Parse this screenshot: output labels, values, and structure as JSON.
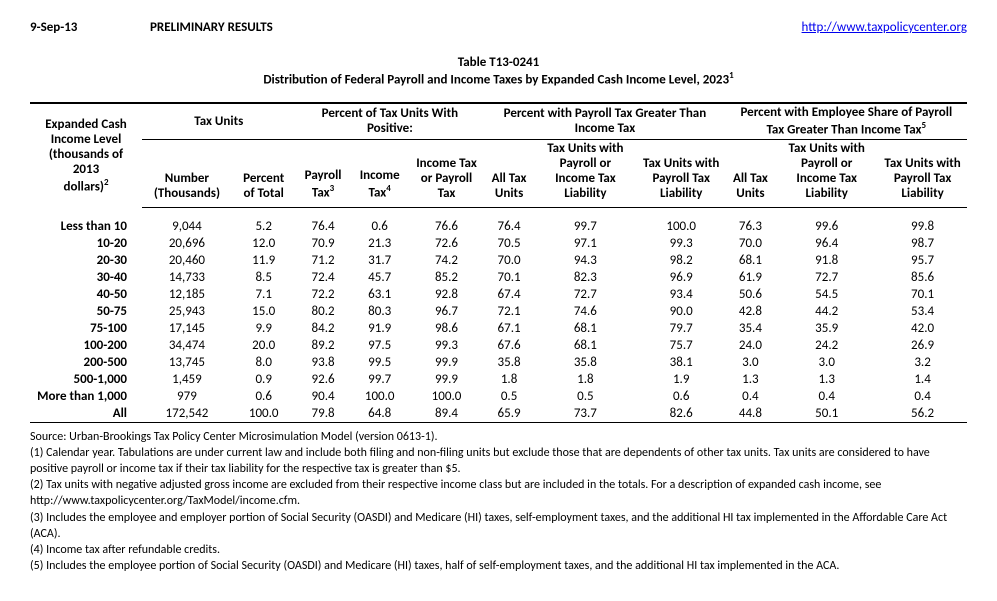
{
  "header": {
    "date": "9-Sep-13",
    "status": "PRELIMINARY RESULTS",
    "link_text": "http://www.taxpolicycenter.org",
    "link_href": "http://www.taxpolicycenter.org"
  },
  "title": {
    "line1": "Table T13-0241",
    "line2_pre": "Distribution of Federal Payroll and Income Taxes by Expanded Cash Income Level, 2023",
    "line2_sup": "1"
  },
  "column_groups": {
    "rowgroup_l1": "Expanded Cash",
    "rowgroup_l2": "Income Level",
    "rowgroup_l3": "(thousands of 2013",
    "rowgroup_l4_pre": "dollars)",
    "rowgroup_l4_sup": "2",
    "g1": "Tax Units",
    "g2": "Percent of Tax Units With Positive:",
    "g3": "Percent with Payroll Tax Greater Than Income Tax",
    "g4_pre": "Percent with Employee Share of Payroll Tax Greater Than Income Tax",
    "g4_sup": "5"
  },
  "subcols": {
    "c1": "Number (Thousands)",
    "c2": "Percent of Total",
    "c3_pre": "Payroll Tax",
    "c3_sup": "3",
    "c4_pre": "Income Tax",
    "c4_sup": "4",
    "c5": "Income Tax or Payroll Tax",
    "c6": "All Tax Units",
    "c7": "Tax Units with Payroll or Income Tax Liability",
    "c8": "Tax Units with Payroll Tax Liability",
    "c9": "All Tax Units",
    "c10": "Tax Units with Payroll or Income Tax Liability",
    "c11": "Tax Units with Payroll Tax Liability"
  },
  "rows": [
    {
      "label": "Less than 10",
      "v": [
        "9,044",
        "5.2",
        "76.4",
        "0.6",
        "76.6",
        "76.4",
        "99.7",
        "100.0",
        "76.3",
        "99.6",
        "99.8"
      ]
    },
    {
      "label": "10-20",
      "v": [
        "20,696",
        "12.0",
        "70.9",
        "21.3",
        "72.6",
        "70.5",
        "97.1",
        "99.3",
        "70.0",
        "96.4",
        "98.7"
      ]
    },
    {
      "label": "20-30",
      "v": [
        "20,460",
        "11.9",
        "71.2",
        "31.7",
        "74.2",
        "70.0",
        "94.3",
        "98.2",
        "68.1",
        "91.8",
        "95.7"
      ]
    },
    {
      "label": "30-40",
      "v": [
        "14,733",
        "8.5",
        "72.4",
        "45.7",
        "85.2",
        "70.1",
        "82.3",
        "96.9",
        "61.9",
        "72.7",
        "85.6"
      ]
    },
    {
      "label": "40-50",
      "v": [
        "12,185",
        "7.1",
        "72.2",
        "63.1",
        "92.8",
        "67.4",
        "72.7",
        "93.4",
        "50.6",
        "54.5",
        "70.1"
      ]
    },
    {
      "label": "50-75",
      "v": [
        "25,943",
        "15.0",
        "80.2",
        "80.3",
        "96.7",
        "72.1",
        "74.6",
        "90.0",
        "42.8",
        "44.2",
        "53.4"
      ]
    },
    {
      "label": "75-100",
      "v": [
        "17,145",
        "9.9",
        "84.2",
        "91.9",
        "98.6",
        "67.1",
        "68.1",
        "79.7",
        "35.4",
        "35.9",
        "42.0"
      ]
    },
    {
      "label": "100-200",
      "v": [
        "34,474",
        "20.0",
        "89.2",
        "97.5",
        "99.3",
        "67.6",
        "68.1",
        "75.7",
        "24.0",
        "24.2",
        "26.9"
      ]
    },
    {
      "label": "200-500",
      "v": [
        "13,745",
        "8.0",
        "93.8",
        "99.5",
        "99.9",
        "35.8",
        "35.8",
        "38.1",
        "3.0",
        "3.0",
        "3.2"
      ]
    },
    {
      "label": "500-1,000",
      "v": [
        "1,459",
        "0.9",
        "92.6",
        "99.7",
        "99.9",
        "1.8",
        "1.8",
        "1.9",
        "1.3",
        "1.3",
        "1.4"
      ]
    },
    {
      "label": "More than 1,000",
      "v": [
        "979",
        "0.6",
        "90.4",
        "100.0",
        "100.0",
        "0.5",
        "0.5",
        "0.6",
        "0.4",
        "0.4",
        "0.4"
      ]
    },
    {
      "label": "All",
      "v": [
        "172,542",
        "100.0",
        "79.8",
        "64.8",
        "89.4",
        "65.9",
        "73.7",
        "82.6",
        "44.8",
        "50.1",
        "56.2"
      ]
    }
  ],
  "footnotes": [
    "Source: Urban-Brookings Tax Policy Center Microsimulation Model (version 0613-1).",
    "(1) Calendar year. Tabulations are under current law and include both filing and non-filing units but exclude those that are dependents of other tax units.  Tax units are considered to have positive payroll or income tax if their tax liability for the respective tax is greater than $5.",
    "(2) Tax units with negative adjusted gross income are excluded from their respective income class but are included in the totals. For a description of expanded cash income, see http://www.taxpolicycenter.org/TaxModel/income.cfm.",
    "(3) Includes the employee and employer portion of Social Security (OASDI) and Medicare (HI) taxes, self-employment taxes, and the additional HI tax implemented in the Affordable Care Act (ACA).",
    "(4) Income tax after refundable credits.",
    "(5) Includes the employee portion of Social Security (OASDI) and Medicare (HI) taxes, half of self-employment taxes, and the additional HI tax implemented in the ACA."
  ]
}
